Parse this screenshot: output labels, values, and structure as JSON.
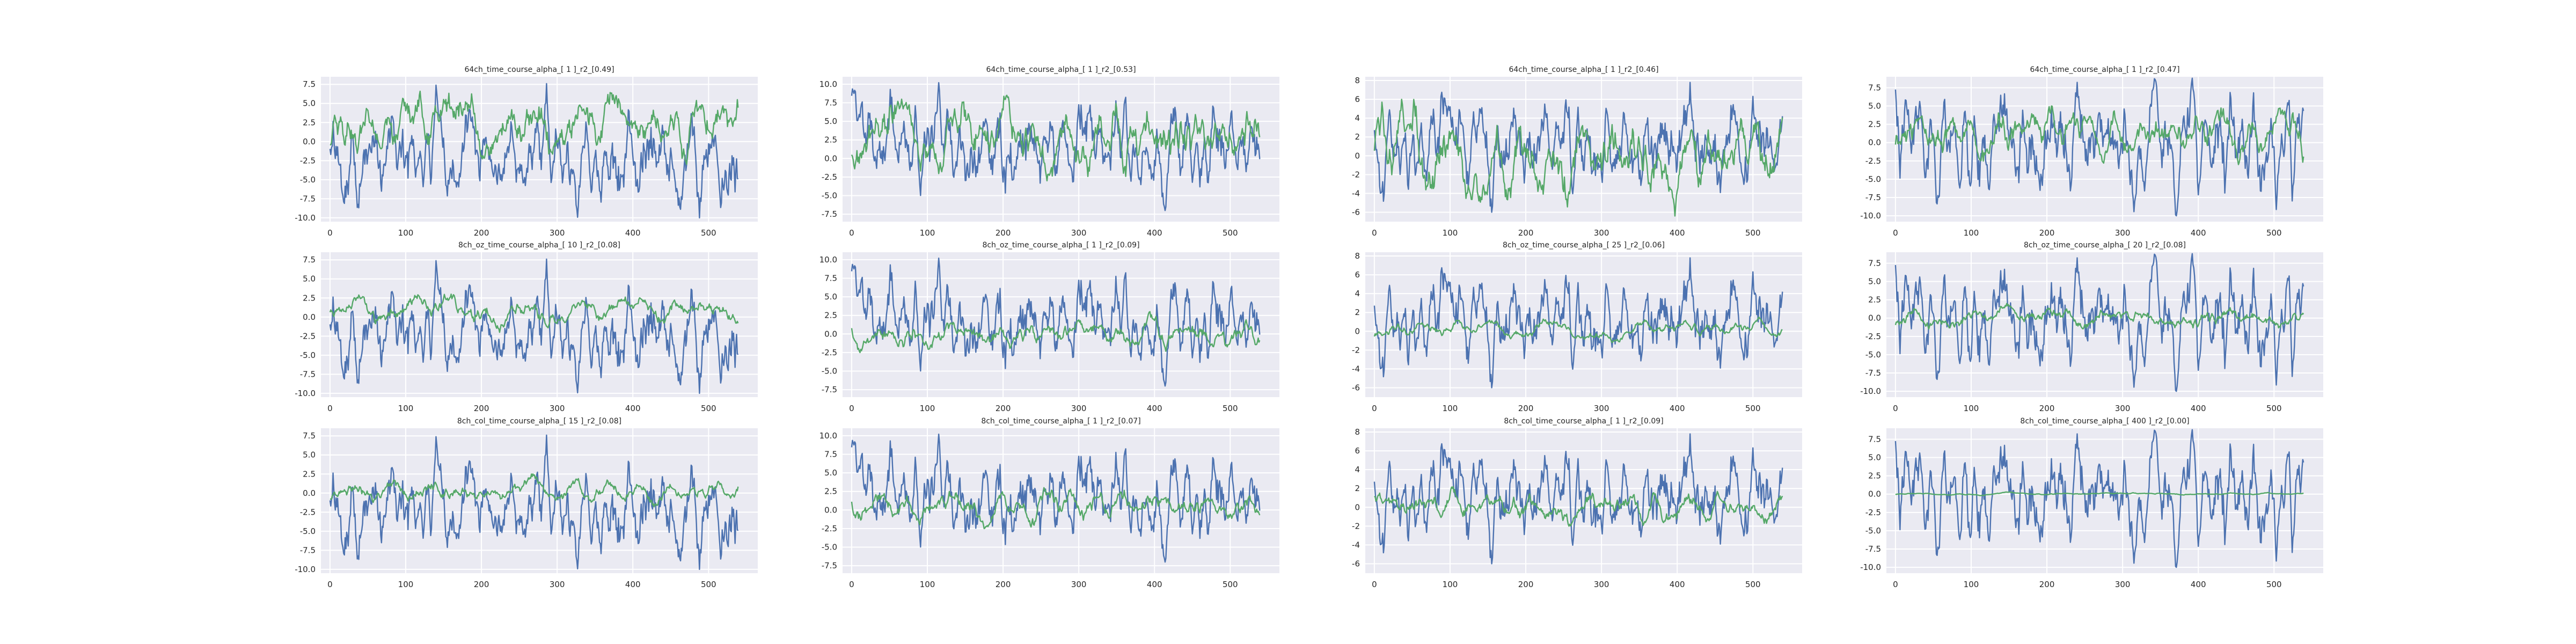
{
  "colors": {
    "panel_bg": "#EAEAF2",
    "grid": "#FFFFFF",
    "series_blue": "#4C72B0",
    "series_green": "#55A868",
    "text": "#262626"
  },
  "chart_data": [
    {
      "type": "line",
      "title": "64ch_time_course_alpha_[ 1 ]_r2_[0.49]",
      "xlim": [
        -12,
        565
      ],
      "ylim": [
        -10.5,
        8.5
      ],
      "xticks": [
        0,
        100,
        200,
        300,
        400,
        500
      ],
      "yticks": [
        -10.0,
        -7.5,
        -5.0,
        -2.5,
        0.0,
        2.5,
        5.0,
        7.5
      ],
      "ytick_decimals": 1,
      "grid": true,
      "n_points": 540,
      "series": [
        {
          "color": "#4C72B0",
          "seed": 101,
          "amplitude": 9.8,
          "min": -10.0,
          "max": 7.6,
          "smooth": 3
        },
        {
          "color": "#55A868",
          "seed": 201,
          "amplitude": 6.0,
          "min": -3.0,
          "max": 6.6,
          "smooth": 6
        }
      ]
    },
    {
      "type": "line",
      "title": "64ch_time_course_alpha_[ 1 ]_r2_[0.53]",
      "xlim": [
        -12,
        565
      ],
      "ylim": [
        -8.5,
        11.0
      ],
      "xticks": [
        0,
        100,
        200,
        300,
        400,
        500
      ],
      "yticks": [
        -7.5,
        -5.0,
        -2.5,
        0.0,
        2.5,
        5.0,
        7.5,
        10.0
      ],
      "ytick_decimals": 1,
      "grid": true,
      "n_points": 540,
      "series": [
        {
          "color": "#4C72B0",
          "seed": 102,
          "amplitude": 9.0,
          "min": -7.0,
          "max": 10.2,
          "smooth": 3
        },
        {
          "color": "#55A868",
          "seed": 202,
          "amplitude": 6.0,
          "min": -3.0,
          "max": 8.5,
          "smooth": 6
        }
      ]
    },
    {
      "type": "line",
      "title": "64ch_time_course_alpha_[ 1 ]_r2_[0.46]",
      "xlim": [
        -12,
        565
      ],
      "ylim": [
        -7.0,
        8.4
      ],
      "xticks": [
        0,
        100,
        200,
        300,
        400,
        500
      ],
      "yticks": [
        -6,
        -4,
        -2,
        0,
        2,
        4,
        6,
        8
      ],
      "ytick_decimals": 0,
      "grid": true,
      "n_points": 540,
      "series": [
        {
          "color": "#4C72B0",
          "seed": 103,
          "amplitude": 7.2,
          "min": -6.0,
          "max": 7.8,
          "smooth": 3
        },
        {
          "color": "#55A868",
          "seed": 203,
          "amplitude": 5.5,
          "min": -6.4,
          "max": 6.0,
          "smooth": 6
        }
      ]
    },
    {
      "type": "line",
      "title": "64ch_time_course_alpha_[ 1 ]_r2_[0.47]",
      "xlim": [
        -12,
        565
      ],
      "ylim": [
        -10.8,
        9.0
      ],
      "xticks": [
        0,
        100,
        200,
        300,
        400,
        500
      ],
      "yticks": [
        -10.0,
        -7.5,
        -5.0,
        -2.5,
        0.0,
        2.5,
        5.0,
        7.5
      ],
      "ytick_decimals": 1,
      "grid": true,
      "n_points": 540,
      "series": [
        {
          "color": "#4C72B0",
          "seed": 104,
          "amplitude": 9.0,
          "min": -10.0,
          "max": 8.8,
          "smooth": 3
        },
        {
          "color": "#55A868",
          "seed": 204,
          "amplitude": 5.2,
          "min": -3.0,
          "max": 5.0,
          "smooth": 6
        }
      ]
    },
    {
      "type": "line",
      "title": "8ch_oz_time_course_alpha_[ 10 ]_r2_[0.08]",
      "xlim": [
        -12,
        565
      ],
      "ylim": [
        -10.5,
        8.5
      ],
      "xticks": [
        0,
        100,
        200,
        300,
        400,
        500
      ],
      "yticks": [
        -10.0,
        -7.5,
        -5.0,
        -2.5,
        0.0,
        2.5,
        5.0,
        7.5
      ],
      "ytick_decimals": 1,
      "grid": true,
      "n_points": 540,
      "series": [
        {
          "color": "#4C72B0",
          "seed": 101,
          "amplitude": 9.8,
          "min": -10.0,
          "max": 7.6,
          "smooth": 3
        },
        {
          "color": "#55A868",
          "seed": 211,
          "amplitude": 2.5,
          "min": -2.0,
          "max": 3.0,
          "smooth": 8
        }
      ]
    },
    {
      "type": "line",
      "title": "8ch_oz_time_course_alpha_[ 1 ]_r2_[0.09]",
      "xlim": [
        -12,
        565
      ],
      "ylim": [
        -8.5,
        11.0
      ],
      "xticks": [
        0,
        100,
        200,
        300,
        400,
        500
      ],
      "yticks": [
        -7.5,
        -5.0,
        -2.5,
        0.0,
        2.5,
        5.0,
        7.5,
        10.0
      ],
      "ytick_decimals": 1,
      "grid": true,
      "n_points": 540,
      "series": [
        {
          "color": "#4C72B0",
          "seed": 102,
          "amplitude": 9.0,
          "min": -7.0,
          "max": 10.2,
          "smooth": 3
        },
        {
          "color": "#55A868",
          "seed": 212,
          "amplitude": 3.0,
          "min": -2.5,
          "max": 3.0,
          "smooth": 6
        }
      ]
    },
    {
      "type": "line",
      "title": "8ch_oz_time_course_alpha_[ 25 ]_r2_[0.06]",
      "xlim": [
        -12,
        565
      ],
      "ylim": [
        -7.0,
        8.4
      ],
      "xticks": [
        0,
        100,
        200,
        300,
        400,
        500
      ],
      "yticks": [
        -6,
        -4,
        -2,
        0,
        2,
        4,
        6,
        8
      ],
      "ytick_decimals": 0,
      "grid": true,
      "n_points": 540,
      "series": [
        {
          "color": "#4C72B0",
          "seed": 103,
          "amplitude": 7.2,
          "min": -6.0,
          "max": 7.8,
          "smooth": 3
        },
        {
          "color": "#55A868",
          "seed": 213,
          "amplitude": 1.8,
          "min": -1.2,
          "max": 1.5,
          "smooth": 10
        }
      ]
    },
    {
      "type": "line",
      "title": "8ch_oz_time_course_alpha_[ 20 ]_r2_[0.08]",
      "xlim": [
        -12,
        565
      ],
      "ylim": [
        -10.8,
        9.0
      ],
      "xticks": [
        0,
        100,
        200,
        300,
        400,
        500
      ],
      "yticks": [
        -10.0,
        -7.5,
        -5.0,
        -2.5,
        0.0,
        2.5,
        5.0,
        7.5
      ],
      "ytick_decimals": 1,
      "grid": true,
      "n_points": 540,
      "series": [
        {
          "color": "#4C72B0",
          "seed": 104,
          "amplitude": 9.0,
          "min": -10.0,
          "max": 8.8,
          "smooth": 3
        },
        {
          "color": "#55A868",
          "seed": 214,
          "amplitude": 2.2,
          "min": -1.5,
          "max": 2.0,
          "smooth": 9
        }
      ]
    },
    {
      "type": "line",
      "title": "8ch_col_time_course_alpha_[ 15 ]_r2_[0.08]",
      "xlim": [
        -12,
        565
      ],
      "ylim": [
        -10.5,
        8.5
      ],
      "xticks": [
        0,
        100,
        200,
        300,
        400,
        500
      ],
      "yticks": [
        -10.0,
        -7.5,
        -5.0,
        -2.5,
        0.0,
        2.5,
        5.0,
        7.5
      ],
      "ytick_decimals": 1,
      "grid": true,
      "n_points": 540,
      "series": [
        {
          "color": "#4C72B0",
          "seed": 101,
          "amplitude": 9.8,
          "min": -10.0,
          "max": 7.6,
          "smooth": 3
        },
        {
          "color": "#55A868",
          "seed": 221,
          "amplitude": 2.4,
          "min": -1.8,
          "max": 2.5,
          "smooth": 8
        }
      ]
    },
    {
      "type": "line",
      "title": "8ch_col_time_course_alpha_[ 1 ]_r2_[0.07]",
      "xlim": [
        -12,
        565
      ],
      "ylim": [
        -8.5,
        11.0
      ],
      "xticks": [
        0,
        100,
        200,
        300,
        400,
        500
      ],
      "yticks": [
        -7.5,
        -5.0,
        -2.5,
        0.0,
        2.5,
        5.0,
        7.5,
        10.0
      ],
      "ytick_decimals": 1,
      "grid": true,
      "n_points": 540,
      "series": [
        {
          "color": "#4C72B0",
          "seed": 102,
          "amplitude": 9.0,
          "min": -7.0,
          "max": 10.2,
          "smooth": 3
        },
        {
          "color": "#55A868",
          "seed": 222,
          "amplitude": 3.0,
          "min": -2.5,
          "max": 3.0,
          "smooth": 6
        }
      ]
    },
    {
      "type": "line",
      "title": "8ch_col_time_course_alpha_[ 1 ]_r2_[0.09]",
      "xlim": [
        -12,
        565
      ],
      "ylim": [
        -7.0,
        8.4
      ],
      "xticks": [
        0,
        100,
        200,
        300,
        400,
        500
      ],
      "yticks": [
        -6,
        -4,
        -2,
        0,
        2,
        4,
        6,
        8
      ],
      "ytick_decimals": 0,
      "grid": true,
      "n_points": 540,
      "series": [
        {
          "color": "#4C72B0",
          "seed": 103,
          "amplitude": 7.2,
          "min": -6.0,
          "max": 7.8,
          "smooth": 3
        },
        {
          "color": "#55A868",
          "seed": 223,
          "amplitude": 2.6,
          "min": -2.0,
          "max": 2.2,
          "smooth": 6
        }
      ]
    },
    {
      "type": "line",
      "title": "8ch_col_time_course_alpha_[ 400 ]_r2_[0.00]",
      "xlim": [
        -12,
        565
      ],
      "ylim": [
        -10.8,
        9.0
      ],
      "xticks": [
        0,
        100,
        200,
        300,
        400,
        500
      ],
      "yticks": [
        -10.0,
        -7.5,
        -5.0,
        -2.5,
        0.0,
        2.5,
        5.0,
        7.5
      ],
      "ytick_decimals": 1,
      "grid": true,
      "n_points": 540,
      "series": [
        {
          "color": "#4C72B0",
          "seed": 104,
          "amplitude": 9.0,
          "min": -10.0,
          "max": 8.8,
          "smooth": 3
        },
        {
          "color": "#55A868",
          "seed": 224,
          "amplitude": 0.35,
          "min": -0.2,
          "max": 0.3,
          "smooth": 14
        }
      ]
    }
  ]
}
